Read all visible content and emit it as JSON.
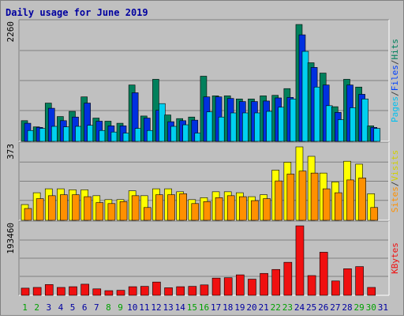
{
  "chart_data": [
    {
      "type": "bar",
      "title": "Daily usage for June 2019",
      "ymax_label": "2260",
      "ylim": [
        0,
        2260
      ],
      "categories": [
        "1",
        "2",
        "3",
        "4",
        "5",
        "6",
        "7",
        "8",
        "9",
        "10",
        "11",
        "12",
        "13",
        "14",
        "15",
        "16",
        "17",
        "18",
        "19",
        "20",
        "21",
        "22",
        "23",
        "24",
        "25",
        "26",
        "27",
        "28",
        "29",
        "30",
        "31"
      ],
      "series": [
        {
          "name": "Hits",
          "color": "#00805c",
          "values": [
            400,
            280,
            740,
            480,
            580,
            860,
            450,
            390,
            350,
            1090,
            490,
            1200,
            510,
            440,
            470,
            1260,
            880,
            880,
            820,
            820,
            880,
            890,
            1020,
            2260,
            1520,
            1320,
            670,
            1200,
            1050,
            300,
            0
          ]
        },
        {
          "name": "Files",
          "color": "#0030e0",
          "values": [
            350,
            270,
            640,
            400,
            470,
            740,
            390,
            300,
            300,
            940,
            450,
            600,
            380,
            400,
            410,
            860,
            860,
            830,
            770,
            770,
            780,
            840,
            850,
            2060,
            1430,
            1090,
            560,
            1090,
            910,
            270,
            0
          ]
        },
        {
          "name": "Pages",
          "color": "#00d0f0",
          "values": [
            210,
            250,
            290,
            280,
            290,
            310,
            210,
            180,
            160,
            250,
            210,
            730,
            290,
            320,
            160,
            570,
            470,
            550,
            550,
            550,
            580,
            660,
            820,
            1740,
            1050,
            690,
            420,
            650,
            820,
            250,
            0
          ]
        }
      ],
      "axis_labels": [
        "Pages",
        "/",
        "Files",
        "/",
        "Hits"
      ],
      "axis_label_colors": [
        "#00c0f0",
        "#404040",
        "#0040ff",
        "#404040",
        "#00805c"
      ]
    },
    {
      "type": "bar",
      "ymax_label": "373",
      "ylim": [
        0,
        373
      ],
      "categories": [
        "1",
        "2",
        "3",
        "4",
        "5",
        "6",
        "7",
        "8",
        "9",
        "10",
        "11",
        "12",
        "13",
        "14",
        "15",
        "16",
        "17",
        "18",
        "19",
        "20",
        "21",
        "22",
        "23",
        "24",
        "25",
        "26",
        "27",
        "28",
        "29",
        "30",
        "31"
      ],
      "series": [
        {
          "name": "Visits",
          "color": "#ffff00",
          "values": [
            80,
            140,
            160,
            160,
            155,
            155,
            125,
            105,
            105,
            150,
            125,
            160,
            160,
            145,
            105,
            115,
            145,
            145,
            140,
            120,
            130,
            255,
            295,
            373,
            325,
            240,
            195,
            300,
            285,
            135,
            0
          ]
        },
        {
          "name": "Sites",
          "color": "#ff9000",
          "values": [
            60,
            110,
            125,
            130,
            130,
            120,
            90,
            85,
            95,
            125,
            65,
            130,
            130,
            135,
            85,
            95,
            115,
            125,
            120,
            100,
            110,
            200,
            235,
            250,
            240,
            160,
            140,
            205,
            215,
            65,
            0
          ]
        }
      ],
      "axis_labels": [
        "Sites",
        "/",
        "Visits"
      ],
      "axis_label_colors": [
        "#ff9000",
        "#404040",
        "#d0d000"
      ]
    },
    {
      "type": "bar",
      "ymax_label": "193460",
      "ylim": [
        0,
        193460
      ],
      "categories": [
        "1",
        "2",
        "3",
        "4",
        "5",
        "6",
        "7",
        "8",
        "9",
        "10",
        "11",
        "12",
        "13",
        "14",
        "15",
        "16",
        "17",
        "18",
        "19",
        "20",
        "21",
        "22",
        "23",
        "24",
        "25",
        "26",
        "27",
        "28",
        "29",
        "30",
        "31"
      ],
      "series": [
        {
          "name": "KBytes",
          "color": "#f01010",
          "values": [
            20000,
            22000,
            30000,
            22000,
            24000,
            31000,
            18000,
            13000,
            14000,
            24000,
            25000,
            37000,
            21000,
            24000,
            25000,
            29000,
            48000,
            49000,
            57000,
            45000,
            61000,
            72000,
            92000,
            193460,
            55000,
            120000,
            40000,
            74000,
            80000,
            22000,
            0
          ]
        }
      ],
      "axis_labels": [
        "KBytes"
      ],
      "axis_label_colors": [
        "#f01010"
      ]
    }
  ],
  "x_axis": {
    "labels": [
      "1",
      "2",
      "3",
      "4",
      "5",
      "6",
      "7",
      "8",
      "9",
      "10",
      "11",
      "12",
      "13",
      "14",
      "15",
      "16",
      "17",
      "18",
      "19",
      "20",
      "21",
      "22",
      "23",
      "24",
      "25",
      "26",
      "27",
      "28",
      "29",
      "30",
      "31"
    ],
    "weekend_color": "#00a000",
    "weekday_color": "#0000a0",
    "weekend_days": [
      1,
      2,
      8,
      9,
      15,
      16,
      22,
      23,
      29,
      30
    ]
  }
}
